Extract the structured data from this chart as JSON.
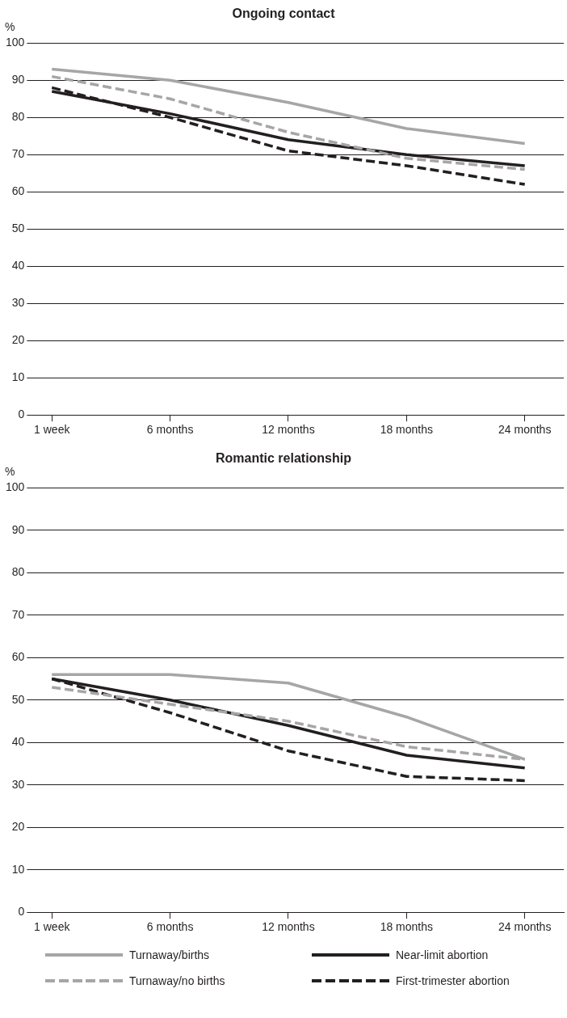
{
  "chart_data": [
    {
      "type": "line",
      "title": "Ongoing contact",
      "ylabel": "%",
      "categories": [
        "1 week",
        "6 months",
        "12 months",
        "18 months",
        "24 months"
      ],
      "series": [
        {
          "color": "#a6a6a8",
          "line_style": "solid",
          "values": [
            93,
            90,
            84,
            77,
            73
          ]
        },
        {
          "color": "#a6a6a8",
          "line_style": "dashed",
          "values": [
            91,
            85,
            76,
            69,
            66
          ]
        },
        {
          "color": "#231f20",
          "line_style": "solid",
          "values": [
            87,
            81,
            74,
            70,
            67
          ]
        },
        {
          "color": "#231f20",
          "line_style": "dashed",
          "values": [
            88,
            80,
            71,
            67,
            62
          ]
        }
      ],
      "ylim": [
        0,
        100
      ],
      "yticks": [
        0,
        10,
        20,
        30,
        40,
        50,
        60,
        70,
        80,
        90,
        100
      ],
      "grid": "y",
      "legend": false,
      "marker": "none"
    },
    {
      "type": "line",
      "title": "Romantic relationship",
      "ylabel": "%",
      "categories": [
        "1 week",
        "6 months",
        "12 months",
        "18 months",
        "24 months"
      ],
      "series": [
        {
          "name": "Turnaway/births",
          "color": "#a6a6a8",
          "line_style": "solid",
          "values": [
            56,
            56,
            54,
            46,
            36
          ]
        },
        {
          "name": "Turnaway/no births",
          "color": "#a6a6a8",
          "line_style": "dashed",
          "values": [
            53,
            49,
            45,
            39,
            36
          ]
        },
        {
          "name": "Near-limit abortion",
          "color": "#231f20",
          "line_style": "solid",
          "values": [
            55,
            50,
            44,
            37,
            34
          ]
        },
        {
          "name": "First-trimester abortion",
          "color": "#231f20",
          "line_style": "dashed",
          "values": [
            55,
            47,
            38,
            32,
            31
          ]
        }
      ],
      "ylim": [
        0,
        100
      ],
      "yticks": [
        0,
        10,
        20,
        30,
        40,
        50,
        60,
        70,
        80,
        90,
        100
      ],
      "grid": "y",
      "legend": "bottom",
      "marker": "none"
    }
  ]
}
